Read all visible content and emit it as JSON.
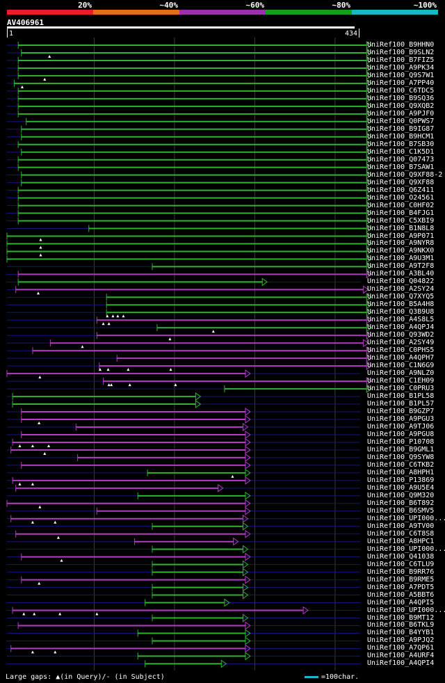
{
  "legend": {
    "bands": [
      {
        "label": "20%",
        "color": "#ed1c24"
      },
      {
        "label": "~40%",
        "color": "#e06f1a"
      },
      {
        "label": "~60%",
        "color": "#9b2fae"
      },
      {
        "label": "~80%",
        "color": "#1a9e1a"
      },
      {
        "label": "~100%",
        "color": "#17b8c8"
      }
    ]
  },
  "query": {
    "id": "AV406961",
    "start": 1,
    "end": 434
  },
  "colors": {
    "green": "#2db52d",
    "purple": "#b43cc4",
    "dim_line": "#16167a",
    "grid": "#3a3a3a"
  },
  "footer": {
    "gaps_text": "Large gaps: ▲(in Query)/- (in Subject)",
    "scale_text": "=100char.",
    "scale_color": "#17b8c8"
  },
  "chart_data": {
    "type": "alignment",
    "query_length": 434,
    "hits": [
      {
        "name": "UniRef100_B9HHN0",
        "start": 15,
        "end": 449,
        "color": "green",
        "marks": []
      },
      {
        "name": "UniRef100_B9SLN2",
        "start": 19,
        "end": 449,
        "color": "green",
        "marks": [
          54
        ]
      },
      {
        "name": "UniRef100_B7FIZ5",
        "start": 15,
        "end": 449,
        "color": "green",
        "marks": []
      },
      {
        "name": "UniRef100_A9PK34",
        "start": 15,
        "end": 449,
        "color": "green",
        "marks": []
      },
      {
        "name": "UniRef100_Q9S7W1",
        "start": 15,
        "end": 449,
        "color": "green",
        "marks": [
          48
        ]
      },
      {
        "name": "UniRef100_A7PP40",
        "start": 10,
        "end": 449,
        "color": "green",
        "marks": [
          20
        ]
      },
      {
        "name": "UniRef100_C6TDC5",
        "start": 15,
        "end": 449,
        "color": "green",
        "marks": []
      },
      {
        "name": "UniRef100_B9SQ36",
        "start": 15,
        "end": 449,
        "color": "green",
        "marks": []
      },
      {
        "name": "UniRef100_Q9XQB2",
        "start": 15,
        "end": 449,
        "color": "green",
        "marks": []
      },
      {
        "name": "UniRef100_A9PJF0",
        "start": 15,
        "end": 449,
        "color": "green",
        "marks": []
      },
      {
        "name": "UniRef100_Q0PWS7",
        "start": 25,
        "end": 449,
        "color": "green",
        "marks": []
      },
      {
        "name": "UniRef100_B9IG87",
        "start": 19,
        "end": 449,
        "color": "green",
        "marks": []
      },
      {
        "name": "UniRef100_B9HCM1",
        "start": 19,
        "end": 449,
        "color": "green",
        "marks": []
      },
      {
        "name": "UniRef100_B7SB30",
        "start": 15,
        "end": 449,
        "color": "green",
        "marks": []
      },
      {
        "name": "UniRef100_C1K5D1",
        "start": 19,
        "end": 449,
        "color": "green",
        "marks": []
      },
      {
        "name": "UniRef100_Q07473",
        "start": 15,
        "end": 449,
        "color": "green",
        "marks": []
      },
      {
        "name": "UniRef100_B7SAW1",
        "start": 15,
        "end": 449,
        "color": "green",
        "marks": []
      },
      {
        "name": "UniRef100_Q9XF88-2",
        "start": 19,
        "end": 449,
        "color": "green",
        "marks": []
      },
      {
        "name": "UniRef100_Q9XF88",
        "start": 19,
        "end": 449,
        "color": "green",
        "marks": []
      },
      {
        "name": "UniRef100_Q6Z411",
        "start": 15,
        "end": 449,
        "color": "green",
        "marks": []
      },
      {
        "name": "UniRef100_O24561",
        "start": 15,
        "end": 449,
        "color": "green",
        "marks": []
      },
      {
        "name": "UniRef100_C0HF02",
        "start": 15,
        "end": 449,
        "color": "green",
        "marks": []
      },
      {
        "name": "UniRef100_B4FJG1",
        "start": 15,
        "end": 449,
        "color": "green",
        "marks": []
      },
      {
        "name": "UniRef100_C5XBI9",
        "start": 15,
        "end": 449,
        "color": "green",
        "marks": []
      },
      {
        "name": "UniRef100_B1N8L8",
        "start": 103,
        "end": 449,
        "color": "green",
        "marks": []
      },
      {
        "name": "UniRef100_A9P071",
        "start": 1,
        "end": 449,
        "color": "green",
        "marks": [
          43
        ]
      },
      {
        "name": "UniRef100_A9NYR8",
        "start": 1,
        "end": 449,
        "color": "green",
        "marks": [
          43
        ]
      },
      {
        "name": "UniRef100_A9NKX0",
        "start": 1,
        "end": 449,
        "color": "green",
        "marks": [
          43
        ]
      },
      {
        "name": "UniRef100_A9U3M1",
        "start": 1,
        "end": 449,
        "color": "green",
        "marks": []
      },
      {
        "name": "UniRef100_A9T2F8",
        "start": 182,
        "end": 449,
        "color": "green",
        "marks": []
      },
      {
        "name": "UniRef100_A3BL40",
        "start": 15,
        "end": 449,
        "color": "purple",
        "marks": []
      },
      {
        "name": "UniRef100_Q04822",
        "start": 15,
        "end": 319,
        "color": "green",
        "marks": []
      },
      {
        "name": "UniRef100_A2SY24",
        "start": 12,
        "end": 445,
        "color": "purple",
        "marks": [
          40
        ]
      },
      {
        "name": "UniRef100_Q7XYQ5",
        "start": 125,
        "end": 449,
        "color": "green",
        "marks": []
      },
      {
        "name": "UniRef100_B5A4H8",
        "start": 125,
        "end": 449,
        "color": "green",
        "marks": []
      },
      {
        "name": "UniRef100_Q3B9U8",
        "start": 125,
        "end": 449,
        "color": "green",
        "marks": [
          126,
          133,
          139,
          146
        ]
      },
      {
        "name": "UniRef100_A4S8L5",
        "start": 113,
        "end": 449,
        "color": "purple",
        "marks": [
          121,
          128
        ]
      },
      {
        "name": "UniRef100_A4QPJ4",
        "start": 188,
        "end": 449,
        "color": "green",
        "marks": [
          258
        ]
      },
      {
        "name": "UniRef100_Q93WD2",
        "start": 113,
        "end": 449,
        "color": "purple",
        "marks": [
          204
        ]
      },
      {
        "name": "UniRef100_A2SY49",
        "start": 55,
        "end": 445,
        "color": "purple",
        "marks": [
          95
        ]
      },
      {
        "name": "UniRef100_C0PHS5",
        "start": 33,
        "end": 449,
        "color": "purple",
        "marks": []
      },
      {
        "name": "UniRef100_A4QPH7",
        "start": 138,
        "end": 449,
        "color": "purple",
        "marks": []
      },
      {
        "name": "UniRef100_C1N6G9",
        "start": 116,
        "end": 449,
        "color": "purple",
        "marks": [
          117,
          127,
          152,
          205
        ]
      },
      {
        "name": "UniRef100_A9NLZ0",
        "start": 1,
        "end": 298,
        "color": "purple",
        "marks": [
          42
        ]
      },
      {
        "name": "UniRef100_C1EH09",
        "start": 121,
        "end": 449,
        "color": "purple",
        "marks": [
          128,
          131,
          154,
          211
        ]
      },
      {
        "name": "UniRef100_C0PRU3",
        "start": 272,
        "end": 449,
        "color": "green",
        "marks": []
      },
      {
        "name": "UniRef100_B1PL58",
        "start": 8,
        "end": 236,
        "color": "green",
        "marks": []
      },
      {
        "name": "UniRef100_B1PL57",
        "start": 8,
        "end": 236,
        "color": "green",
        "marks": []
      },
      {
        "name": "UniRef100_B9GZP7",
        "start": 19,
        "end": 298,
        "color": "purple",
        "marks": []
      },
      {
        "name": "UniRef100_A9PGU3",
        "start": 19,
        "end": 298,
        "color": "purple",
        "marks": [
          41
        ]
      },
      {
        "name": "UniRef100_A9TJ06",
        "start": 87,
        "end": 295,
        "color": "purple",
        "marks": []
      },
      {
        "name": "UniRef100_A9PGU8",
        "start": 19,
        "end": 298,
        "color": "purple",
        "marks": []
      },
      {
        "name": "UniRef100_P10708",
        "start": 8,
        "end": 298,
        "color": "purple",
        "marks": [
          17,
          33,
          53
        ]
      },
      {
        "name": "UniRef100_B9GML1",
        "start": 6,
        "end": 298,
        "color": "purple",
        "marks": [
          48
        ]
      },
      {
        "name": "UniRef100_Q9SYW8",
        "start": 89,
        "end": 298,
        "color": "purple",
        "marks": []
      },
      {
        "name": "UniRef100_C6TKB2",
        "start": 19,
        "end": 298,
        "color": "purple",
        "marks": []
      },
      {
        "name": "UniRef100_A8HPH1",
        "start": 176,
        "end": 298,
        "color": "green",
        "marks": [
          282
        ]
      },
      {
        "name": "UniRef100_P13869",
        "start": 8,
        "end": 298,
        "color": "purple",
        "marks": [
          17,
          33
        ]
      },
      {
        "name": "UniRef100_A9U5E4",
        "start": 12,
        "end": 264,
        "color": "purple",
        "marks": []
      },
      {
        "name": "UniRef100_Q9M320",
        "start": 164,
        "end": 298,
        "color": "green",
        "marks": []
      },
      {
        "name": "UniRef100_B6T892",
        "start": 1,
        "end": 298,
        "color": "purple",
        "marks": [
          42
        ]
      },
      {
        "name": "UniRef100_B6SMV5",
        "start": 113,
        "end": 298,
        "color": "purple",
        "marks": []
      },
      {
        "name": "UniRef100_UPI000...",
        "start": 6,
        "end": 295,
        "color": "purple",
        "marks": [
          33,
          61
        ]
      },
      {
        "name": "UniRef100_A9TV00",
        "start": 182,
        "end": 295,
        "color": "green",
        "marks": []
      },
      {
        "name": "UniRef100_C6T8S8",
        "start": 12,
        "end": 298,
        "color": "purple",
        "marks": [
          65
        ]
      },
      {
        "name": "UniRef100_A8HPC1",
        "start": 160,
        "end": 283,
        "color": "purple",
        "marks": []
      },
      {
        "name": "UniRef100_UPI000...",
        "start": 182,
        "end": 295,
        "color": "green",
        "marks": []
      },
      {
        "name": "UniRef100_Q41038",
        "start": 19,
        "end": 298,
        "color": "purple",
        "marks": [
          69
        ]
      },
      {
        "name": "UniRef100_C6TLU9",
        "start": 182,
        "end": 295,
        "color": "green",
        "marks": []
      },
      {
        "name": "UniRef100_B9RR76",
        "start": 182,
        "end": 295,
        "color": "green",
        "marks": []
      },
      {
        "name": "UniRef100_B9RME5",
        "start": 19,
        "end": 298,
        "color": "purple",
        "marks": [
          41
        ]
      },
      {
        "name": "UniRef100_A7PDT5",
        "start": 182,
        "end": 295,
        "color": "green",
        "marks": []
      },
      {
        "name": "UniRef100_A5BBT6",
        "start": 182,
        "end": 295,
        "color": "green",
        "marks": []
      },
      {
        "name": "UniRef100_A4QPI5",
        "start": 173,
        "end": 272,
        "color": "green",
        "marks": []
      },
      {
        "name": "UniRef100_UPI000...",
        "start": 8,
        "end": 370,
        "color": "purple",
        "marks": [
          22,
          35,
          67,
          113
        ]
      },
      {
        "name": "UniRef100_B9MT12",
        "start": 182,
        "end": 295,
        "color": "green",
        "marks": []
      },
      {
        "name": "UniRef100_B6TKL9",
        "start": 15,
        "end": 298,
        "color": "purple",
        "marks": []
      },
      {
        "name": "UniRef100_B4YYB1",
        "start": 164,
        "end": 298,
        "color": "green",
        "marks": []
      },
      {
        "name": "UniRef100_A9PJQ2",
        "start": 182,
        "end": 298,
        "color": "green",
        "marks": []
      },
      {
        "name": "UniRef100_A7QP61",
        "start": 6,
        "end": 298,
        "color": "purple",
        "marks": [
          33,
          61
        ]
      },
      {
        "name": "UniRef100_A4URF4",
        "start": 164,
        "end": 298,
        "color": "green",
        "marks": []
      },
      {
        "name": "UniRef100_A4QPI4",
        "start": 173,
        "end": 268,
        "color": "green",
        "marks": []
      }
    ]
  }
}
